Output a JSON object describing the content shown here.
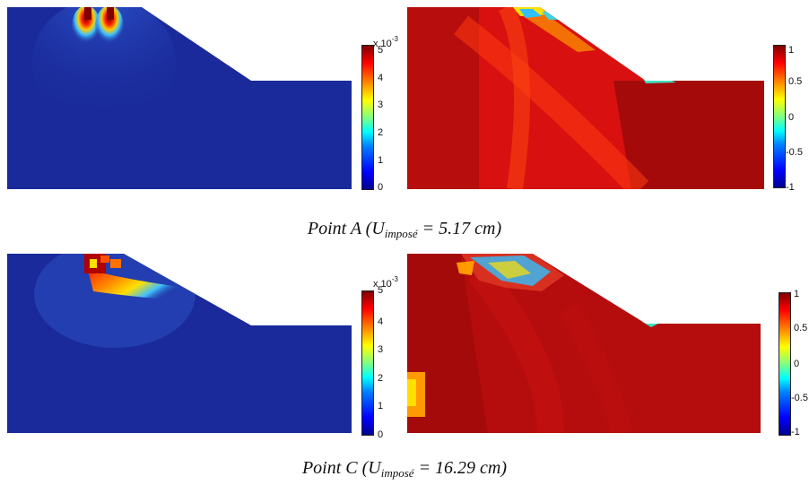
{
  "row_a": {
    "strain_colorbar": {
      "multiplier": "x 10",
      "multiplier_exponent": "-3",
      "ticks": [
        "5",
        "4",
        "3",
        "2",
        "1",
        "0"
      ]
    },
    "index_colorbar": {
      "ticks": [
        "1",
        "0.5",
        "0",
        "-0.5",
        "-1"
      ]
    },
    "caption": {
      "point": "Point A (U",
      "sub": "imposé",
      "rest": " = 5.17 cm)"
    }
  },
  "row_c": {
    "strain_colorbar": {
      "multiplier": "x 10",
      "multiplier_exponent": "-3",
      "ticks": [
        "5",
        "4",
        "3",
        "2",
        "1",
        "0"
      ]
    },
    "index_colorbar": {
      "ticks": [
        "1",
        "0.5",
        "0",
        "-0.5",
        "-1"
      ]
    },
    "caption": {
      "point": "Point C (U",
      "sub": "imposé",
      "rest": " = 16.29 cm)"
    }
  },
  "colors": {
    "field_low": "#1a2a9a",
    "field_high_red": "#d81010",
    "field_dark_red": "#a50a0a"
  }
}
